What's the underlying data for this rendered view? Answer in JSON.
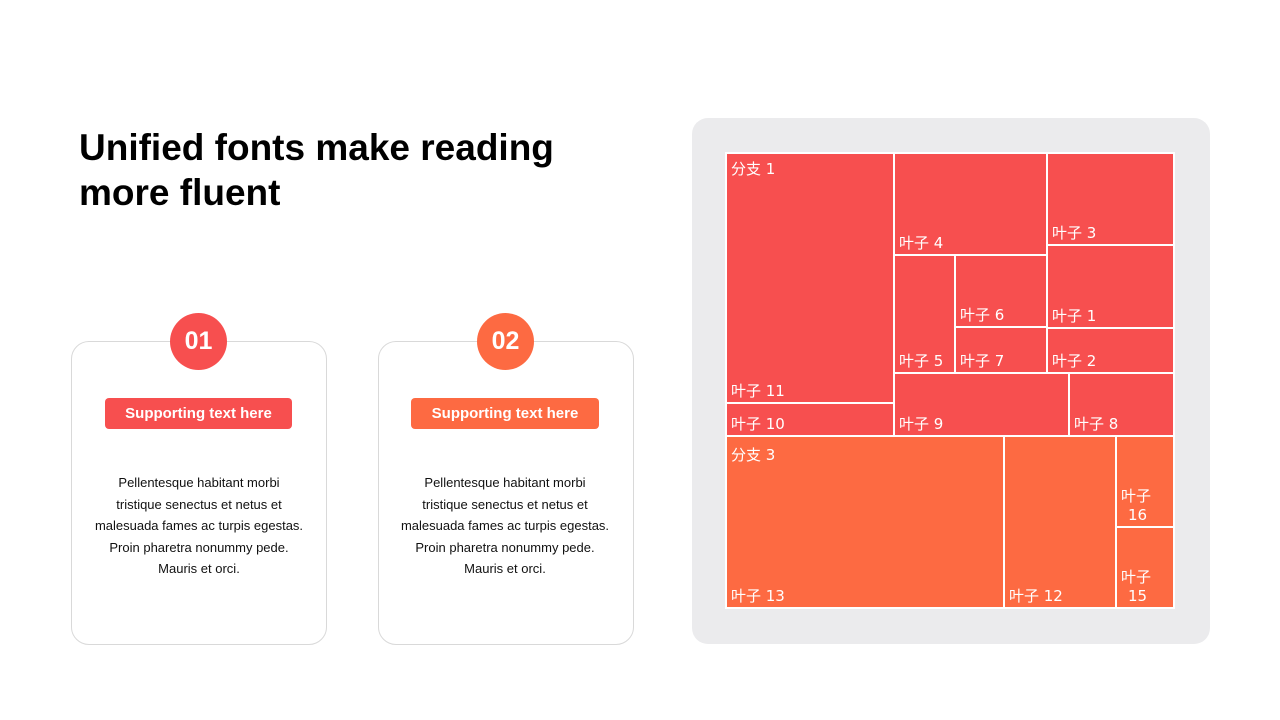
{
  "title": "Unified fonts make reading more fluent",
  "colors": {
    "red": "#f74f4f",
    "orange": "#fd6a42",
    "panel": "#ebebed"
  },
  "cards": [
    {
      "number": "01",
      "pill": "Supporting text here",
      "body": "Pellentesque habitant morbi tristique senectus et netus et malesuada fames ac turpis egestas. Proin pharetra nonummy pede. Mauris et orci."
    },
    {
      "number": "02",
      "pill": "Supporting text here",
      "body": "Pellentesque habitant morbi tristique senectus et netus et malesuada fames ac turpis egestas. Proin pharetra nonummy pede. Mauris et orci."
    }
  ],
  "chart_data": {
    "type": "treemap",
    "branches": [
      {
        "name": "分支 1",
        "leaves": [
          "叶子 11",
          "叶子 10",
          "叶子 4",
          "叶子 3",
          "叶子 5",
          "叶子 6",
          "叶子 7",
          "叶子 1",
          "叶子 2",
          "叶子 9",
          "叶子 8"
        ]
      },
      {
        "name": "分支 3",
        "leaves": [
          "叶子 13",
          "叶子 12",
          "叶子 16",
          "叶子 15"
        ]
      }
    ]
  }
}
